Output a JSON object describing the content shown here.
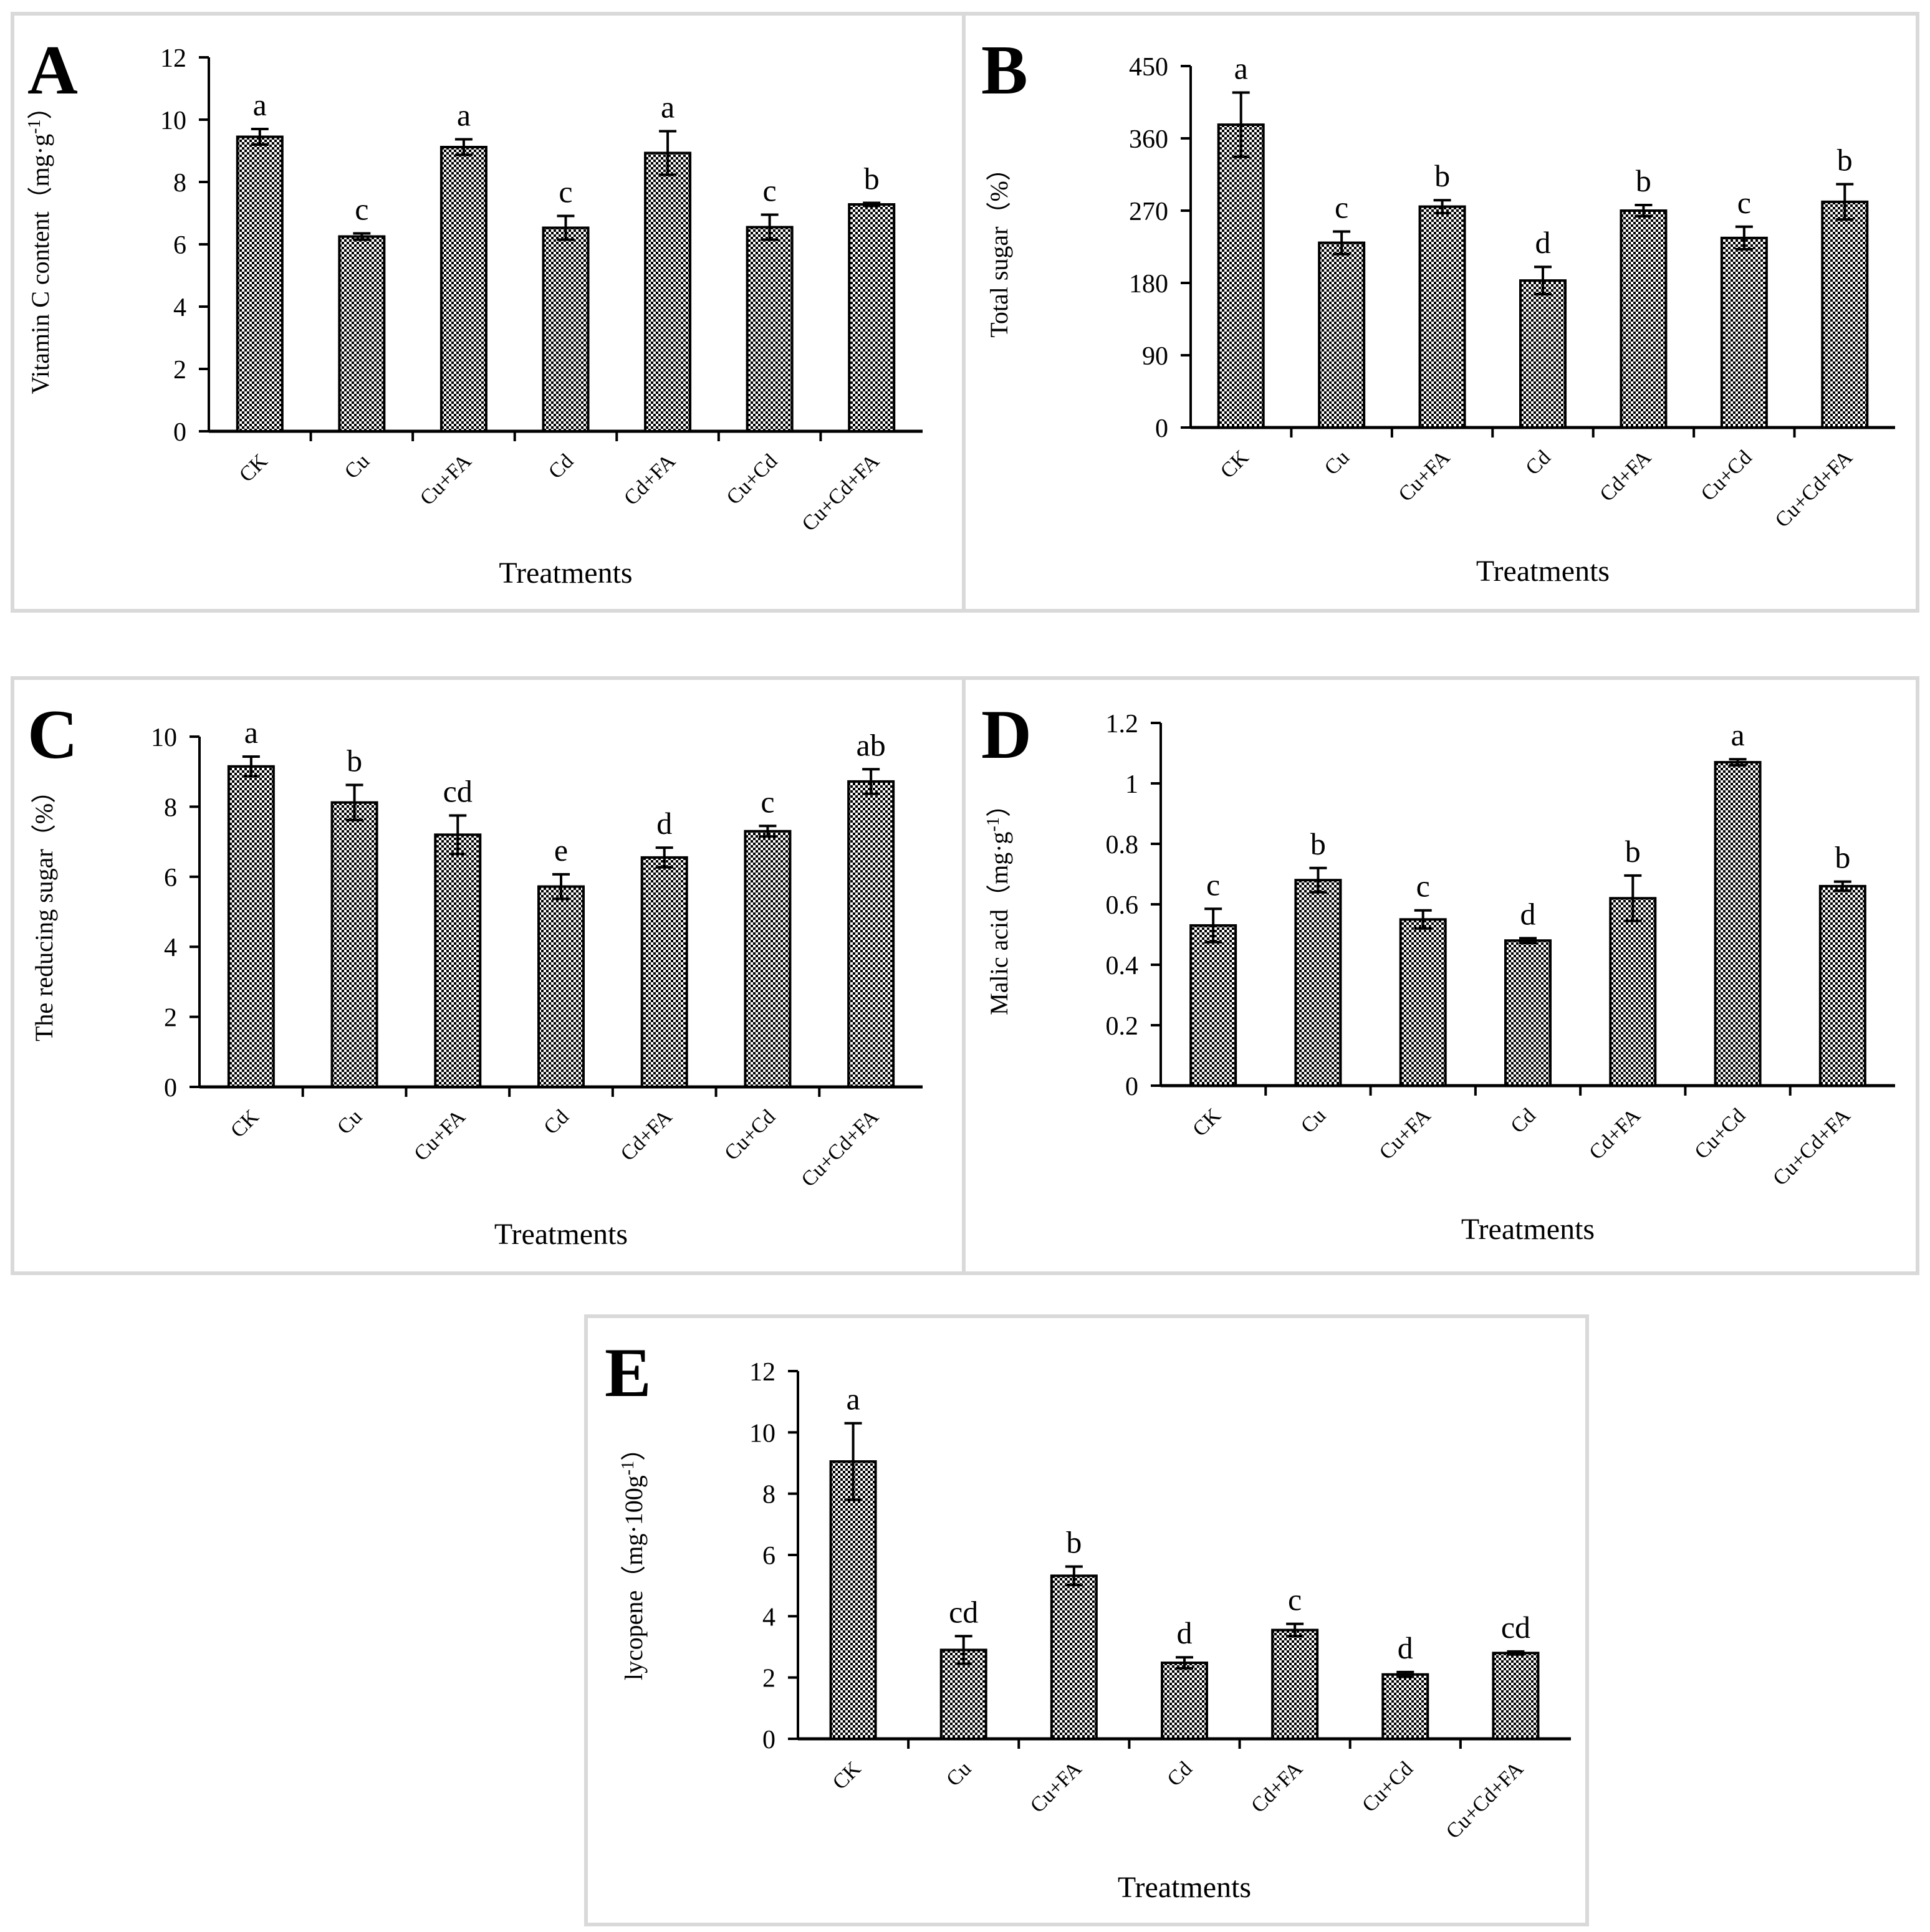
{
  "chart_data": [
    {
      "type": "bar",
      "panel_label": "A",
      "categories": [
        "CK",
        "Cu",
        "Cu+FA",
        "Cd",
        "Cd+FA",
        "Cu+Cd",
        "Cu+Cd+FA"
      ],
      "values": [
        9.45,
        6.25,
        9.12,
        6.53,
        8.93,
        6.55,
        7.28
      ],
      "errors": [
        0.25,
        0.1,
        0.25,
        0.38,
        0.7,
        0.4,
        0.05
      ],
      "significance_letters": [
        "a",
        "c",
        "a",
        "c",
        "a",
        "c",
        "b"
      ],
      "ylim": [
        0,
        12
      ],
      "yticks": [
        "0",
        "2",
        "4",
        "6",
        "8",
        "10",
        "12"
      ],
      "ylabel": "Vitamin C content（mg·g",
      "ylabel_sup": "-1",
      "ylabel_end": "）",
      "xlabel": "Treatments"
    },
    {
      "type": "bar",
      "panel_label": "B",
      "categories": [
        "CK",
        "Cu",
        "Cu+FA",
        "Cd",
        "Cd+FA",
        "Cu+Cd",
        "Cu+Cd+FA"
      ],
      "values": [
        377,
        230,
        275,
        183,
        270,
        236,
        281
      ],
      "errors": [
        40,
        14,
        8,
        17,
        7,
        14,
        22
      ],
      "significance_letters": [
        "a",
        "c",
        "b",
        "d",
        "b",
        "c",
        "b"
      ],
      "ylim": [
        0,
        450
      ],
      "yticks": [
        "0",
        "90",
        "180",
        "270",
        "360",
        "450"
      ],
      "ylabel": "Total sugar（%）",
      "ylabel_sup": "",
      "ylabel_end": "",
      "xlabel": "Treatments"
    },
    {
      "type": "bar",
      "panel_label": "C",
      "categories": [
        "CK",
        "Cu",
        "Cu+FA",
        "Cd",
        "Cd+FA",
        "Cu+Cd",
        "Cu+Cd+FA"
      ],
      "values": [
        9.15,
        8.12,
        7.2,
        5.72,
        6.55,
        7.3,
        8.72
      ],
      "errors": [
        0.28,
        0.5,
        0.55,
        0.35,
        0.28,
        0.15,
        0.35
      ],
      "significance_letters": [
        "a",
        "b",
        "cd",
        "e",
        "d",
        "c",
        "ab"
      ],
      "ylim": [
        0,
        10
      ],
      "yticks": [
        "0",
        "2",
        "4",
        "6",
        "8",
        "10"
      ],
      "ylabel": "The reducing sugar（%）",
      "ylabel_sup": "",
      "ylabel_end": "",
      "xlabel": "Treatments"
    },
    {
      "type": "bar",
      "panel_label": "D",
      "categories": [
        "CK",
        "Cu",
        "Cu+FA",
        "Cd",
        "Cd+FA",
        "Cu+Cd",
        "Cu+Cd+FA"
      ],
      "values": [
        0.53,
        0.68,
        0.55,
        0.48,
        0.62,
        1.07,
        0.66
      ],
      "errors": [
        0.055,
        0.04,
        0.03,
        0.008,
        0.075,
        0.01,
        0.015
      ],
      "significance_letters": [
        "c",
        "b",
        "c",
        "d",
        "b",
        "a",
        "b"
      ],
      "ylim": [
        0,
        1.2
      ],
      "yticks": [
        "0",
        "0.2",
        "0.4",
        "0.6",
        "0.8",
        "1",
        "1.2"
      ],
      "ylabel": "Malic acid（mg·g",
      "ylabel_sup": "-1",
      "ylabel_end": "）",
      "xlabel": "Treatments"
    },
    {
      "type": "bar",
      "panel_label": "E",
      "categories": [
        "CK",
        "Cu",
        "Cu+FA",
        "Cd",
        "Cd+FA",
        "Cu+Cd",
        "Cu+Cd+FA"
      ],
      "values": [
        9.05,
        2.9,
        5.32,
        2.48,
        3.55,
        2.1,
        2.8
      ],
      "errors": [
        1.25,
        0.45,
        0.3,
        0.18,
        0.2,
        0.08,
        0.05
      ],
      "significance_letters": [
        "a",
        "cd",
        "b",
        "d",
        "c",
        "d",
        "cd"
      ],
      "ylim": [
        0,
        12
      ],
      "yticks": [
        "0",
        "2",
        "4",
        "6",
        "8",
        "10",
        "12"
      ],
      "ylabel": "lycopene（mg·100g",
      "ylabel_sup": "-1",
      "ylabel_end": "）",
      "xlabel": "Treatments"
    }
  ],
  "colors": {
    "bar_fill_dark": "#000000",
    "bar_fill_light": "#ffffff",
    "frame": "#d9d9d9",
    "ink": "#000000"
  }
}
